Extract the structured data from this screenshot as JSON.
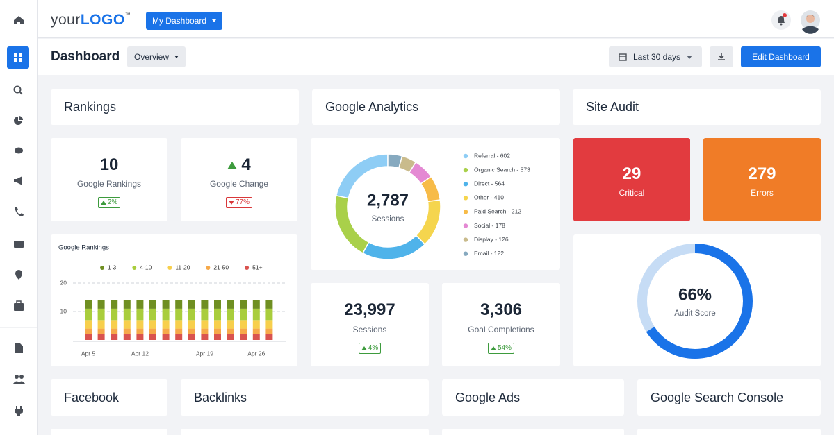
{
  "topbar": {
    "logo": {
      "prefix": "your",
      "brand": "LOGO",
      "mark": "™"
    },
    "dashboard_menu": "My Dashboard"
  },
  "toolbar": {
    "title": "Dashboard",
    "view": "Overview",
    "date_range": "Last 30 days",
    "edit_button": "Edit Dashboard"
  },
  "sections": {
    "rankings": "Rankings",
    "google_analytics": "Google Analytics",
    "site_audit": "Site Audit",
    "facebook": "Facebook",
    "backlinks": "Backlinks",
    "google_ads": "Google Ads",
    "google_search_console": "Google Search Console"
  },
  "rankings": {
    "google_rankings": {
      "value": "10",
      "label": "Google Rankings",
      "change": "2%",
      "change_direction": "up"
    },
    "google_change": {
      "value": "4",
      "direction": "up",
      "label": "Google Change",
      "change": "77%",
      "change_direction": "down"
    }
  },
  "rankings_chart": {
    "type": "stacked-bar",
    "title": "Google Rankings",
    "categories": [
      "Apr 5",
      null,
      null,
      null,
      "Apr 12",
      null,
      null,
      null,
      null,
      "Apr 19",
      null,
      null,
      null,
      "Apr 26",
      null
    ],
    "series": [
      {
        "name": "1-3",
        "color": "#6f8f22",
        "values": [
          3,
          3,
          3,
          3,
          3,
          3,
          3,
          3,
          3,
          3,
          3,
          3,
          3,
          3,
          3
        ]
      },
      {
        "name": "4-10",
        "color": "#a9cd3c",
        "values": [
          4,
          4,
          4,
          4,
          4,
          4,
          4,
          4,
          4,
          4,
          4,
          4,
          4,
          4,
          4
        ]
      },
      {
        "name": "11-20",
        "color": "#f7cf4c",
        "values": [
          3,
          3,
          3,
          3,
          3,
          3,
          3,
          3,
          3,
          3,
          3,
          3,
          3,
          3,
          3
        ]
      },
      {
        "name": "21-50",
        "color": "#f6a94a",
        "values": [
          2,
          2,
          2,
          2,
          2,
          2,
          2,
          2,
          2,
          2,
          2,
          2,
          2,
          2,
          2
        ]
      },
      {
        "name": "51+",
        "color": "#d9534f",
        "values": [
          2,
          2,
          2,
          2,
          2,
          2,
          2,
          2,
          2,
          2,
          2,
          2,
          2,
          2,
          2
        ]
      }
    ],
    "ylim": [
      0,
      20
    ],
    "yticks": [
      10,
      20
    ],
    "grid": true
  },
  "analytics_chart": {
    "type": "donut",
    "total": "2,787",
    "total_label": "Sessions",
    "legend_labels": [
      "Referral - 602",
      "Organic Search - 573",
      "Direct - 564",
      "Other - 410",
      "Paid Search - 212",
      "Social - 178",
      "Display - 126",
      "Email - 122"
    ],
    "values": [
      602,
      573,
      564,
      410,
      212,
      178,
      126,
      122
    ],
    "colors": [
      "#8ecdf5",
      "#a9d04a",
      "#4fb3ea",
      "#f5d54e",
      "#f7bb48",
      "#e489d3",
      "#c9bb8c",
      "#86a9bf"
    ]
  },
  "analytics_stats": [
    {
      "value": "23,997",
      "label": "Sessions",
      "change": "4%",
      "change_direction": "up"
    },
    {
      "value": "3,306",
      "label": "Goal Completions",
      "change": "54%",
      "change_direction": "up"
    }
  ],
  "site_audit": {
    "critical": {
      "value": "29",
      "label": "Critical",
      "color": "#e23b3f"
    },
    "errors": {
      "value": "279",
      "label": "Errors",
      "color": "#f07c27"
    },
    "audit_score": {
      "type": "ring",
      "value": 66,
      "label": "66%",
      "caption": "Audit Score",
      "color": "#1a73e8",
      "track_color": "#c6dcf5"
    }
  }
}
